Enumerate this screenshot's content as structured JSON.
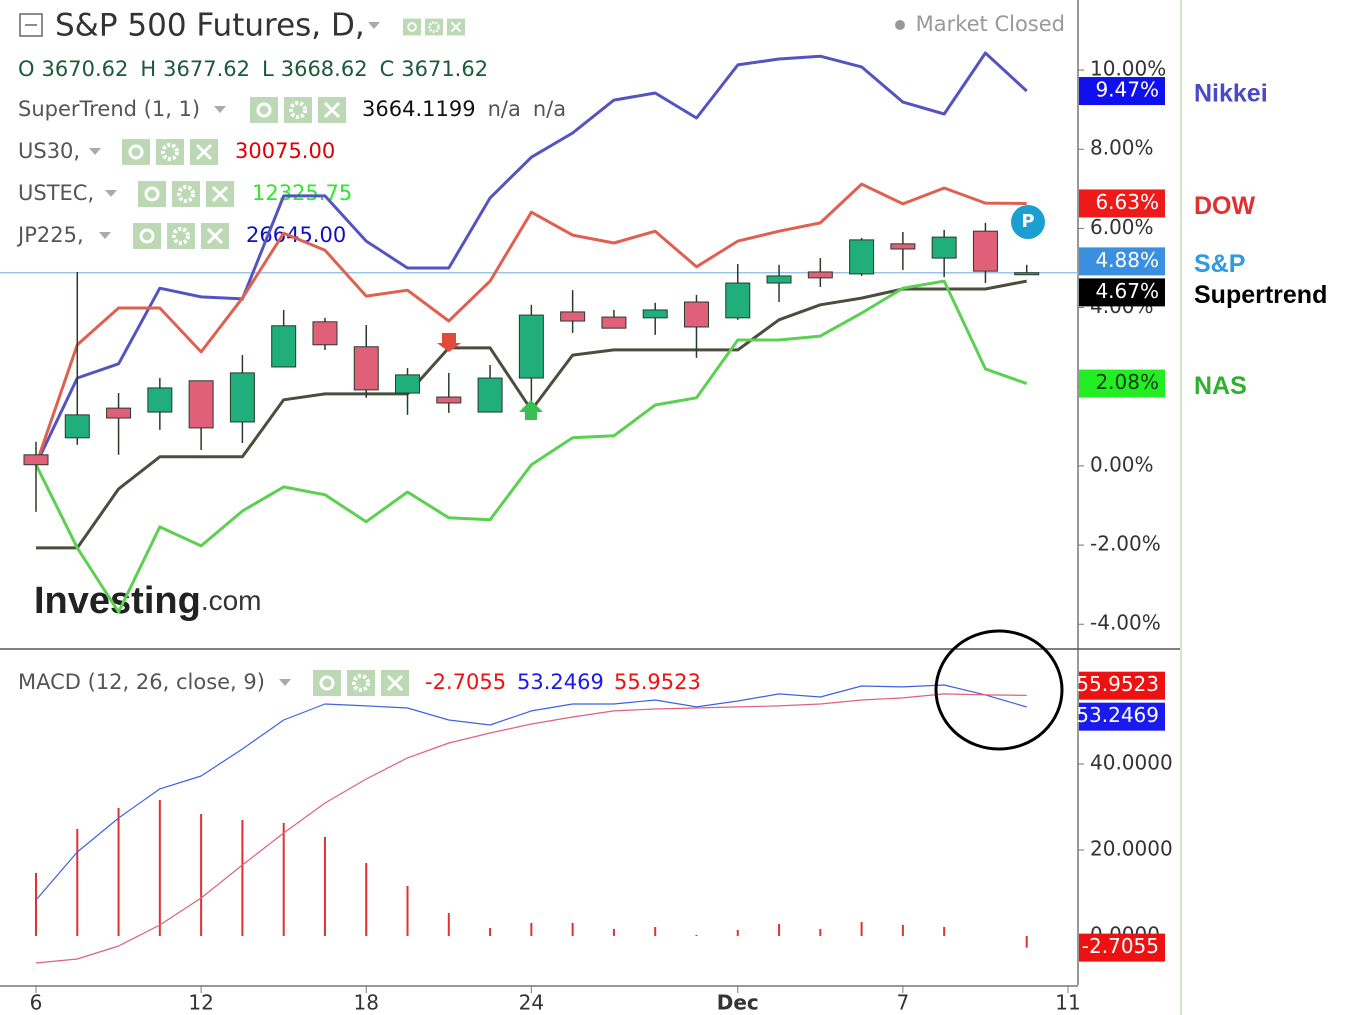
{
  "chart_data": [
    {
      "type": "candlestick",
      "title": "S&P 500 Futures, D,",
      "status": "Market Closed",
      "badge": "P",
      "watermark": [
        "Investing",
        ".com"
      ],
      "ohlc": [
        {
          "label": "O",
          "value": "3670.62"
        },
        {
          "label": "H",
          "value": "3677.62"
        },
        {
          "label": "L",
          "value": "3668.62"
        },
        {
          "label": "C",
          "value": "3671.62"
        }
      ],
      "indicators": [
        {
          "name": "SuperTrend (1, 1)",
          "color": "#111111",
          "values": [
            "3664.1199",
            "n/a",
            "n/a"
          ]
        },
        {
          "name": "US30,",
          "color": "#e00000",
          "values": [
            "30075.00"
          ]
        },
        {
          "name": "USTEC,",
          "color": "#2ee82e",
          "values": [
            "12325.75"
          ]
        },
        {
          "name": "JP225,",
          "color": "#1010c0",
          "values": [
            "26645.00"
          ]
        }
      ],
      "categories": [
        "6",
        null,
        null,
        null,
        "12",
        null,
        null,
        null,
        "18",
        null,
        null,
        null,
        "24",
        null,
        null,
        null,
        null,
        "Dec",
        null,
        null,
        null,
        "7",
        null,
        null,
        null,
        "11"
      ],
      "ylim": [
        -4.6,
        11.77
      ],
      "yticks": [
        {
          "value": 10,
          "label": "10.00%"
        },
        {
          "value": 8,
          "label": "8.00%"
        },
        {
          "value": 6,
          "label": "6.00%"
        },
        {
          "value": 4,
          "label": "4.00%"
        },
        {
          "value": 2,
          "label": "2.00%"
        },
        {
          "value": 0,
          "label": "0.00%"
        },
        {
          "value": -2,
          "label": "-2.00%"
        },
        {
          "value": -4,
          "label": "-4.00%"
        }
      ],
      "candles": {
        "name": "S&P",
        "legend_color": "#2f9ae0",
        "tag_color": "#3a8fe0",
        "up_color": "#1fae7c",
        "down_color": "#e0607a",
        "open": [
          0.28,
          0.71,
          1.46,
          1.36,
          2.15,
          1.11,
          2.5,
          3.64,
          3.01,
          1.84,
          1.74,
          1.36,
          2.22,
          3.89,
          3.76,
          3.74,
          4.14,
          3.74,
          4.62,
          4.9,
          4.85,
          5.61,
          5.25,
          5.93,
          4.85,
          null
        ],
        "high": [
          0.61,
          4.9,
          1.84,
          2.22,
          2.15,
          2.8,
          3.94,
          3.74,
          3.56,
          2.47,
          2.35,
          2.55,
          4.07,
          4.44,
          3.94,
          4.12,
          4.32,
          5.1,
          5.08,
          5.25,
          5.76,
          5.91,
          5.96,
          6.14,
          5.08,
          null
        ],
        "low": [
          -1.16,
          0.53,
          0.28,
          0.91,
          0.4,
          0.58,
          2.5,
          2.93,
          1.72,
          1.29,
          1.34,
          1.36,
          1.21,
          3.36,
          3.48,
          3.31,
          2.73,
          3.69,
          4.14,
          4.52,
          4.8,
          4.95,
          4.77,
          4.62,
          4.85,
          null
        ],
        "close": [
          0.03,
          1.29,
          1.21,
          1.97,
          0.96,
          2.35,
          3.54,
          3.06,
          1.92,
          2.3,
          1.59,
          2.22,
          3.81,
          3.66,
          3.48,
          3.94,
          3.51,
          4.62,
          4.8,
          4.75,
          5.71,
          5.48,
          5.78,
          4.92,
          4.88,
          null
        ],
        "value_labels": [
          null,
          null,
          null,
          null,
          null,
          null,
          null,
          null,
          null,
          null,
          null,
          null,
          null,
          null,
          null,
          null,
          null,
          null,
          null,
          null,
          null,
          null,
          null,
          null,
          "4.88%",
          null
        ]
      },
      "series": [
        {
          "name": "Nikkei",
          "color": "#5454c0",
          "legend_color": "#4a4ac8",
          "tag_color": "#1010ee",
          "values": [
            0.03,
            2.22,
            2.58,
            4.49,
            4.27,
            4.22,
            6.82,
            6.82,
            5.68,
            5.0,
            5.0,
            6.77,
            7.8,
            8.41,
            9.24,
            9.42,
            8.79,
            10.13,
            10.28,
            10.35,
            10.08,
            9.19,
            8.89,
            10.43,
            9.47,
            null
          ],
          "value_labels": [
            null,
            null,
            null,
            null,
            null,
            null,
            null,
            null,
            null,
            null,
            null,
            null,
            null,
            null,
            null,
            null,
            null,
            null,
            null,
            null,
            null,
            null,
            null,
            null,
            "9.47%",
            null
          ]
        },
        {
          "name": "DOW",
          "color": "#e06050",
          "legend_color": "#e03030",
          "tag_color": "#ee1a1a",
          "values": [
            0.03,
            3.06,
            3.99,
            3.99,
            2.88,
            4.24,
            5.88,
            5.45,
            4.29,
            4.44,
            3.66,
            4.67,
            6.41,
            5.83,
            5.63,
            5.93,
            5.03,
            5.68,
            5.93,
            6.14,
            7.12,
            6.62,
            7.02,
            6.64,
            6.63,
            null
          ],
          "value_labels": [
            null,
            null,
            null,
            null,
            null,
            null,
            null,
            null,
            null,
            null,
            null,
            null,
            null,
            null,
            null,
            null,
            null,
            null,
            null,
            null,
            null,
            null,
            null,
            null,
            "6.63%",
            null
          ]
        },
        {
          "name": "Supertrend",
          "color": "#4d4d3d",
          "legend_color": "#000000",
          "tag_color": "#000000",
          "values": [
            -2.07,
            -2.07,
            -0.58,
            0.23,
            0.23,
            0.23,
            1.67,
            1.82,
            1.82,
            1.82,
            2.98,
            2.98,
            1.41,
            2.8,
            2.93,
            2.93,
            2.93,
            2.93,
            3.69,
            4.07,
            4.24,
            4.47,
            4.47,
            4.47,
            4.67,
            null
          ],
          "value_labels": [
            null,
            null,
            null,
            null,
            null,
            null,
            null,
            null,
            null,
            null,
            null,
            null,
            null,
            null,
            null,
            null,
            null,
            null,
            null,
            null,
            null,
            null,
            null,
            null,
            "4.67%",
            null
          ]
        },
        {
          "name": "NAS",
          "color": "#5cd050",
          "legend_color": "#30b030",
          "tag_color": "#22ee22",
          "values": [
            0.03,
            -2.07,
            -3.69,
            -1.54,
            -2.02,
            -1.14,
            -0.53,
            -0.73,
            -1.41,
            -0.66,
            -1.31,
            -1.36,
            0.03,
            0.71,
            0.76,
            1.54,
            1.72,
            3.18,
            3.18,
            3.28,
            3.86,
            4.49,
            4.67,
            2.45,
            2.08,
            null
          ],
          "value_labels": [
            null,
            null,
            null,
            null,
            null,
            null,
            null,
            null,
            null,
            null,
            null,
            null,
            null,
            null,
            null,
            null,
            null,
            null,
            null,
            null,
            null,
            null,
            null,
            null,
            "2.08%",
            null
          ]
        }
      ]
    },
    {
      "type": "macd",
      "title": "MACD (12, 26, close, 9)",
      "ylim": [
        -11.4,
        66.5
      ],
      "yticks": [
        {
          "value": 0,
          "label": "0.0000"
        },
        {
          "value": 20,
          "label": "20.0000"
        },
        {
          "value": 40,
          "label": "40.0000"
        }
      ],
      "series": [
        {
          "kind": "histogram",
          "color": "#e03030",
          "tag_color": "#ee1111",
          "values": [
            14.65,
            24.88,
            29.77,
            31.63,
            28.37,
            26.98,
            26.28,
            23.02,
            16.98,
            11.62,
            5.35,
            1.86,
            3.03,
            3.02,
            1.62,
            2.09,
            0.24,
            1.39,
            2.79,
            1.63,
            3.26,
            2.56,
            2.09,
            0.0,
            -2.7055,
            null
          ],
          "value_labels": [
            null,
            null,
            null,
            null,
            null,
            null,
            null,
            null,
            null,
            null,
            null,
            null,
            null,
            null,
            null,
            null,
            null,
            null,
            null,
            null,
            null,
            null,
            null,
            null,
            "-2.7055",
            null
          ]
        },
        {
          "kind": "line",
          "color": "#3f62e0",
          "tag_color": "#1a1aee",
          "values": [
            8.37,
            19.53,
            27.44,
            34.19,
            37.21,
            43.49,
            50.23,
            53.95,
            53.49,
            53.02,
            50.23,
            49.07,
            52.33,
            53.95,
            53.95,
            54.88,
            53.26,
            54.65,
            56.28,
            55.58,
            58.14,
            57.91,
            58.37,
            56.05,
            53.2469,
            null
          ],
          "value_labels": [
            null,
            null,
            null,
            null,
            null,
            null,
            null,
            null,
            null,
            null,
            null,
            null,
            null,
            null,
            null,
            null,
            null,
            null,
            null,
            null,
            null,
            null,
            null,
            null,
            "53.2469",
            null
          ]
        },
        {
          "kind": "line",
          "color": "#e06080",
          "tag_color": "#ee1111",
          "values": [
            -6.28,
            -5.35,
            -2.33,
            2.56,
            8.84,
            16.51,
            23.95,
            30.93,
            36.51,
            41.4,
            44.88,
            47.21,
            49.3,
            50.93,
            52.33,
            52.79,
            53.02,
            53.26,
            53.49,
            53.95,
            54.88,
            55.35,
            56.28,
            56.05,
            55.9523,
            null
          ],
          "value_labels": [
            null,
            null,
            null,
            null,
            null,
            null,
            null,
            null,
            null,
            null,
            null,
            null,
            null,
            null,
            null,
            null,
            null,
            null,
            null,
            null,
            null,
            null,
            null,
            null,
            "55.9523",
            null
          ]
        }
      ]
    }
  ]
}
